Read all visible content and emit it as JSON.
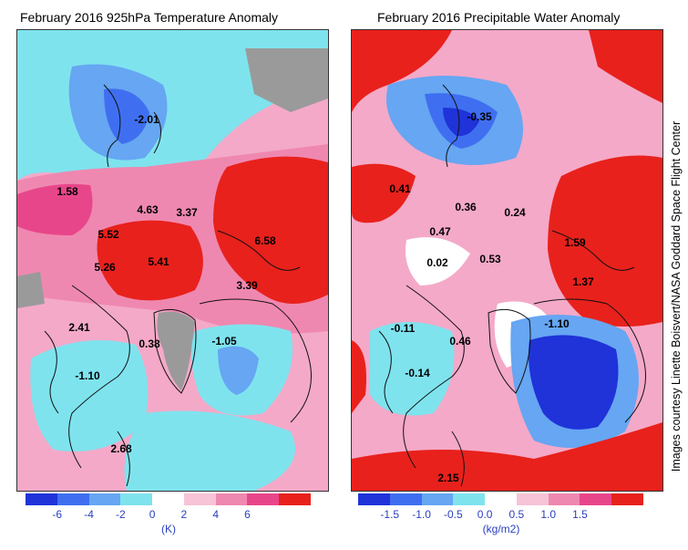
{
  "left_panel": {
    "title": "February 2016 925hPa Temperature Anomaly",
    "unit": "(K)",
    "ticks": [
      "-6",
      "-4",
      "-2",
      "0",
      "2",
      "4",
      "6"
    ],
    "colorbar_colors": [
      "#1f33d9",
      "#3f6ff0",
      "#66a6f2",
      "#7fe3ee",
      "#ffffff",
      "#f7c3d6",
      "#ef88b0",
      "#e8468a",
      "#e8211c"
    ],
    "values": [
      "-2.01",
      "1.58",
      "4.63",
      "3.37",
      "5.52",
      "6.58",
      "5.26",
      "5.41",
      "3.39",
      "2.41",
      "0.38",
      "-1.05",
      "-1.10",
      "2.68"
    ]
  },
  "right_panel": {
    "title": "February 2016 Precipitable Water Anomaly",
    "unit": "(kg/m2)",
    "ticks": [
      "-1.5",
      "-1.0",
      "-0.5",
      "0.0",
      "0.5",
      "1.0",
      "1.5"
    ],
    "colorbar_colors": [
      "#1f33d9",
      "#3f6ff0",
      "#66a6f2",
      "#7fe3ee",
      "#ffffff",
      "#f7c3d6",
      "#ef88b0",
      "#e8468a",
      "#e8211c"
    ],
    "values": [
      "-0.35",
      "0.41",
      "0.36",
      "0.24",
      "0.47",
      "1.59",
      "0.02",
      "0.53",
      "1.37",
      "-0.11",
      "-1.10",
      "0.46",
      "-0.14",
      "2.15"
    ]
  },
  "credit": "Images courtesy Linette Boisvert/NASA Goddard Space Flight Center"
}
